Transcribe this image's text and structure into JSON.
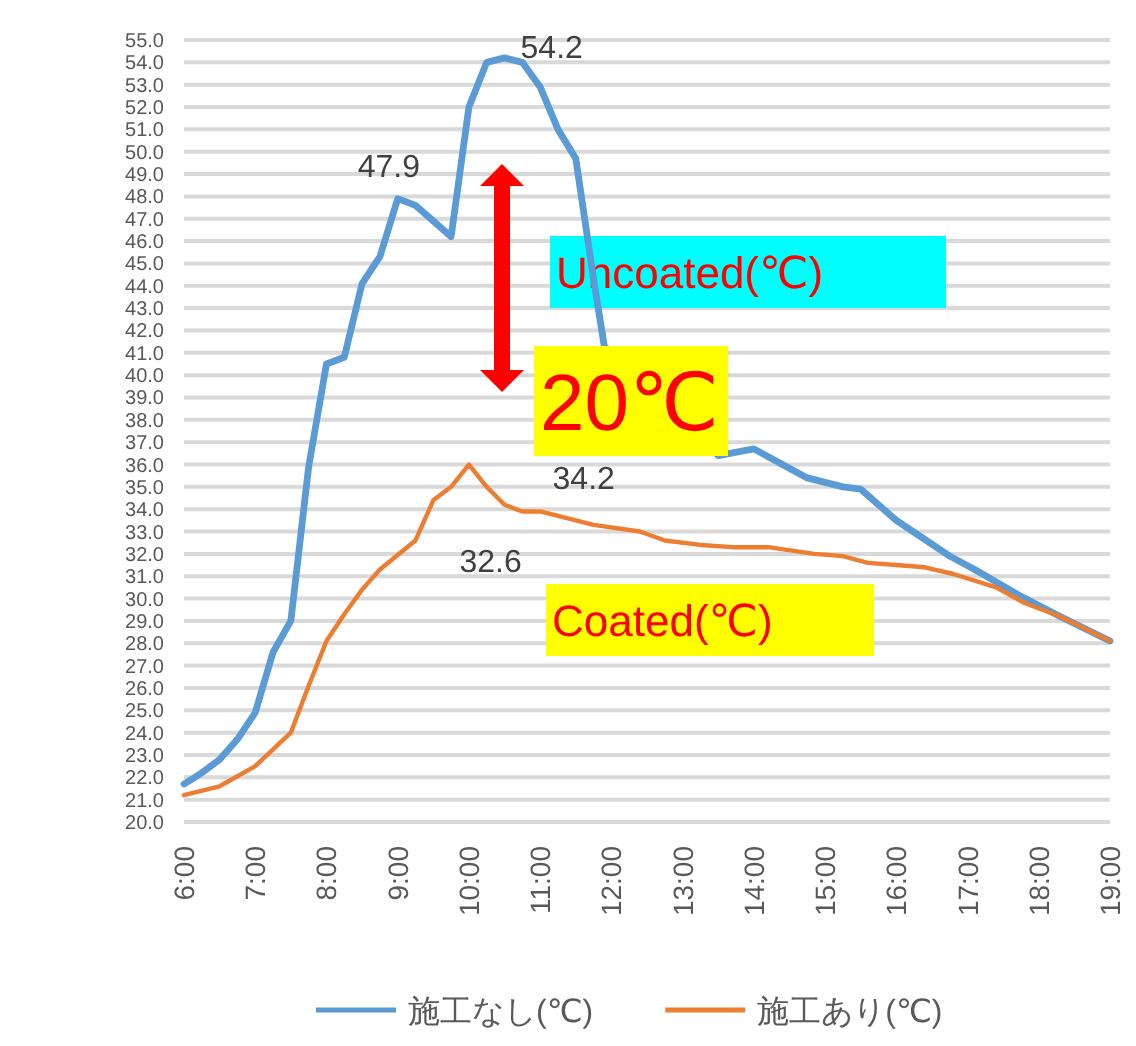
{
  "chart_data": {
    "type": "line",
    "xlim": [
      6,
      19
    ],
    "ylim": [
      20,
      55
    ],
    "grid": "y",
    "legend": "bottom",
    "xticks": [
      {
        "value": 6,
        "label": "6:00"
      },
      {
        "value": 7,
        "label": "7:00"
      },
      {
        "value": 8,
        "label": "8:00"
      },
      {
        "value": 9,
        "label": "9:00"
      },
      {
        "value": 10,
        "label": "10:00"
      },
      {
        "value": 11,
        "label": "11:00"
      },
      {
        "value": 12,
        "label": "12:00"
      },
      {
        "value": 13,
        "label": "13:00"
      },
      {
        "value": 14,
        "label": "14:00"
      },
      {
        "value": 15,
        "label": "15:00"
      },
      {
        "value": 16,
        "label": "16:00"
      },
      {
        "value": 17,
        "label": "17:00"
      },
      {
        "value": 18,
        "label": "18:00"
      },
      {
        "value": 19,
        "label": "19:00"
      }
    ],
    "yticks": [
      {
        "value": 20,
        "label": "20.0"
      },
      {
        "value": 21,
        "label": "21.0"
      },
      {
        "value": 22,
        "label": "22.0"
      },
      {
        "value": 23,
        "label": "23.0"
      },
      {
        "value": 24,
        "label": "24.0"
      },
      {
        "value": 25,
        "label": "25.0"
      },
      {
        "value": 26,
        "label": "26.0"
      },
      {
        "value": 27,
        "label": "27.0"
      },
      {
        "value": 28,
        "label": "28.0"
      },
      {
        "value": 29,
        "label": "29.0"
      },
      {
        "value": 30,
        "label": "30.0"
      },
      {
        "value": 31,
        "label": "31.0"
      },
      {
        "value": 32,
        "label": "32.0"
      },
      {
        "value": 33,
        "label": "33.0"
      },
      {
        "value": 34,
        "label": "34.0"
      },
      {
        "value": 35,
        "label": "35.0"
      },
      {
        "value": 36,
        "label": "36.0"
      },
      {
        "value": 37,
        "label": "37.0"
      },
      {
        "value": 38,
        "label": "38.0"
      },
      {
        "value": 39,
        "label": "39.0"
      },
      {
        "value": 40,
        "label": "40.0"
      },
      {
        "value": 41,
        "label": "41.0"
      },
      {
        "value": 42,
        "label": "42.0"
      },
      {
        "value": 43,
        "label": "43.0"
      },
      {
        "value": 44,
        "label": "44.0"
      },
      {
        "value": 45,
        "label": "45.0"
      },
      {
        "value": 46,
        "label": "46.0"
      },
      {
        "value": 47,
        "label": "47.0"
      },
      {
        "value": 48,
        "label": "48.0"
      },
      {
        "value": 49,
        "label": "49.0"
      },
      {
        "value": 50,
        "label": "50.0"
      },
      {
        "value": 51,
        "label": "51.0"
      },
      {
        "value": 52,
        "label": "52.0"
      },
      {
        "value": 53,
        "label": "53.0"
      },
      {
        "value": 54,
        "label": "54.0"
      },
      {
        "value": 55,
        "label": "55.0"
      }
    ],
    "series": [
      {
        "name": "施工なし(℃)",
        "color": "#5b9bd5",
        "x": [
          6,
          6.25,
          6.5,
          6.75,
          7,
          7.25,
          7.5,
          7.75,
          8,
          8.25,
          8.5,
          8.75,
          9,
          9.25,
          9.75,
          10,
          10.25,
          10.5,
          10.75,
          11,
          11.25,
          11.5,
          11.75,
          11.9,
          13.5,
          14,
          14.75,
          15.25,
          15.5,
          16,
          16.75,
          17.1,
          17.75,
          18.3,
          19
        ],
        "values": [
          21.7,
          22.2,
          22.8,
          23.7,
          24.9,
          27.6,
          29,
          35.9,
          40.5,
          40.8,
          44.1,
          45.3,
          47.9,
          47.6,
          46.2,
          52,
          54,
          54.2,
          54,
          52.9,
          51,
          49.7,
          44.3,
          41.3,
          36.4,
          36.7,
          35.4,
          35,
          34.9,
          33.5,
          31.9,
          31.3,
          30.1,
          29.2,
          28.1
        ]
      },
      {
        "name": "施工あり(℃)",
        "color": "#ed7d31",
        "x": [
          6,
          6.5,
          7,
          7.5,
          7.75,
          8,
          8.25,
          8.5,
          8.75,
          9.25,
          9.5,
          9.75,
          10,
          10.25,
          10.5,
          10.75,
          11,
          11.75,
          12.4,
          12.75,
          13.25,
          13.7,
          14.2,
          14.85,
          15.25,
          15.6,
          16,
          16.4,
          16.8,
          17.4,
          17.8,
          18.3,
          19
        ],
        "values": [
          21.2,
          21.6,
          22.5,
          24,
          26.1,
          28.1,
          29.3,
          30.4,
          31.3,
          32.6,
          34.4,
          35,
          36,
          35,
          34.2,
          33.9,
          33.9,
          33.3,
          33,
          32.6,
          32.4,
          32.3,
          32.3,
          32,
          31.9,
          31.6,
          31.5,
          31.4,
          31.1,
          30.5,
          29.8,
          29.2,
          28.1
        ]
      }
    ],
    "annotations": [
      {
        "text": "47.9",
        "x": 9,
        "y": 47.9
      },
      {
        "text": "54.2",
        "x": 10.5,
        "y": 54.2
      },
      {
        "text": "32.6",
        "x": 9.25,
        "y": 32.6
      },
      {
        "text": "34.2",
        "x": 10.5,
        "y": 34.2
      },
      "Uncoated(℃)",
      "20℃",
      "Coated(℃)"
    ]
  }
}
